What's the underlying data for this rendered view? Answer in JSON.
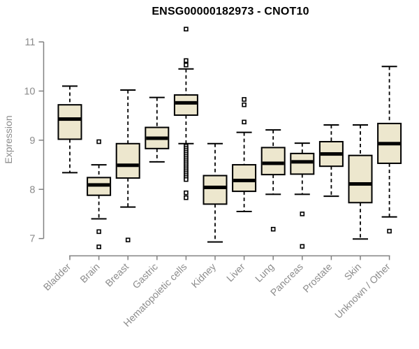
{
  "title": "ENSG00000182973 - CNOT10",
  "y_axis": {
    "label": "Expression",
    "ticks": [
      7,
      8,
      9,
      10,
      11
    ],
    "range": [
      7,
      11
    ]
  },
  "colors": {
    "box_fill": "#EDE7CE",
    "box_stroke": "#000000",
    "median": "#000000",
    "whisker": "#000000",
    "axis": "#818181",
    "tick_text": "#8c8c8c",
    "title_text": "#000000",
    "background": "#ffffff"
  },
  "chart_data": {
    "type": "boxplot",
    "title": "ENSG00000182973 - CNOT10",
    "xlabel": "",
    "ylabel": "Expression",
    "yticks": [
      7,
      8,
      9,
      10,
      11
    ],
    "ylim": [
      6.7,
      11.35
    ],
    "grid": false,
    "legend": "none",
    "categories": [
      "Bladder",
      "Brain",
      "Breast",
      "Gastric",
      "Hematopoietic cells",
      "Kidney",
      "Liver",
      "Lung",
      "Pancreas",
      "Prostate",
      "Skin",
      "Unknown / Other"
    ],
    "series": [
      {
        "name": "Bladder",
        "whisker_low": 8.34,
        "q1": 9.02,
        "median": 9.43,
        "q3": 9.72,
        "whisker_high": 10.1,
        "outliers": []
      },
      {
        "name": "Brain",
        "whisker_low": 7.4,
        "q1": 7.88,
        "median": 8.09,
        "q3": 8.24,
        "whisker_high": 8.5,
        "outliers": [
          8.97,
          7.14,
          6.83
        ]
      },
      {
        "name": "Breast",
        "whisker_low": 7.64,
        "q1": 8.23,
        "median": 8.49,
        "q3": 8.93,
        "whisker_high": 10.02,
        "outliers": [
          6.97
        ]
      },
      {
        "name": "Gastric",
        "whisker_low": 8.56,
        "q1": 8.83,
        "median": 9.04,
        "q3": 9.26,
        "whisker_high": 9.87,
        "outliers": []
      },
      {
        "name": "Hematopoietic cells",
        "whisker_low": 8.93,
        "q1": 9.51,
        "median": 9.76,
        "q3": 9.92,
        "whisker_high": 10.45,
        "outliers": [
          11.26,
          10.62,
          10.53,
          8.88,
          8.84,
          8.8,
          8.76,
          8.72,
          8.68,
          8.64,
          8.6,
          8.56,
          8.52,
          8.48,
          8.44,
          8.4,
          8.36,
          8.32,
          8.28,
          8.24,
          8.2,
          7.93,
          7.83
        ]
      },
      {
        "name": "Kidney",
        "whisker_low": 6.93,
        "q1": 7.7,
        "median": 8.04,
        "q3": 8.28,
        "whisker_high": 8.93,
        "outliers": []
      },
      {
        "name": "Liver",
        "whisker_low": 7.55,
        "q1": 7.96,
        "median": 8.18,
        "q3": 8.5,
        "whisker_high": 9.16,
        "outliers": [
          9.83,
          9.72,
          9.37
        ]
      },
      {
        "name": "Lung",
        "whisker_low": 7.9,
        "q1": 8.3,
        "median": 8.53,
        "q3": 8.85,
        "whisker_high": 9.21,
        "outliers": [
          7.19
        ]
      },
      {
        "name": "Pancreas",
        "whisker_low": 7.9,
        "q1": 8.31,
        "median": 8.56,
        "q3": 8.73,
        "whisker_high": 8.94,
        "outliers": [
          7.5,
          6.84
        ]
      },
      {
        "name": "Prostate",
        "whisker_low": 7.86,
        "q1": 8.47,
        "median": 8.72,
        "q3": 8.97,
        "whisker_high": 9.31,
        "outliers": []
      },
      {
        "name": "Skin",
        "whisker_low": 6.99,
        "q1": 7.73,
        "median": 8.11,
        "q3": 8.69,
        "whisker_high": 9.31,
        "outliers": []
      },
      {
        "name": "Unknown / Other",
        "whisker_low": 7.44,
        "q1": 8.53,
        "median": 8.93,
        "q3": 9.34,
        "whisker_high": 10.5,
        "outliers": [
          7.15
        ]
      }
    ]
  }
}
